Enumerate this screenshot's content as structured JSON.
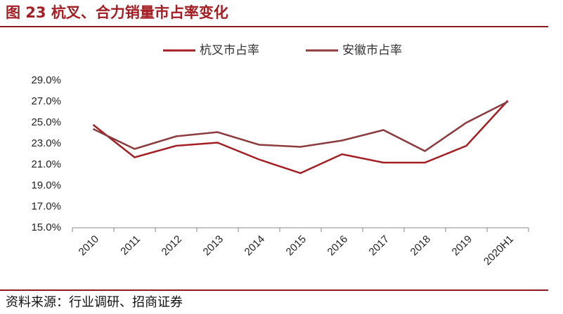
{
  "chart_data": {
    "type": "line",
    "title": "图 23 杭叉、合力销量市占率变化",
    "source": "资料来源：行业调研、招商证券",
    "categories": [
      "2010",
      "2011",
      "2012",
      "2013",
      "2014",
      "2015",
      "2016",
      "2017",
      "2018",
      "2019",
      "2020H1"
    ],
    "series": [
      {
        "name": "杭叉市占率",
        "color": "#a31f24",
        "values": [
          24.8,
          21.7,
          22.8,
          23.1,
          21.5,
          20.2,
          22.0,
          21.2,
          21.2,
          22.8,
          27.1
        ]
      },
      {
        "name": "安徽市占率",
        "color": "#8c3b3e",
        "values": [
          24.4,
          22.5,
          23.7,
          24.1,
          22.9,
          22.7,
          23.3,
          24.3,
          22.3,
          25.0,
          27.0
        ]
      }
    ],
    "ylim": [
      15,
      29
    ],
    "yticks": [
      {
        "value": 15,
        "label": "15.0%"
      },
      {
        "value": 17,
        "label": "17.0%"
      },
      {
        "value": 19,
        "label": "19.0%"
      },
      {
        "value": 21,
        "label": "21.0%"
      },
      {
        "value": 23,
        "label": "23.0%"
      },
      {
        "value": 25,
        "label": "25.0%"
      },
      {
        "value": 27,
        "label": "27.0%"
      },
      {
        "value": 29,
        "label": "29.0%"
      }
    ],
    "legend": "top"
  }
}
